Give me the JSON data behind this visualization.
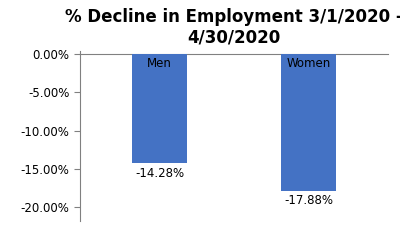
{
  "categories": [
    "Men",
    "Women"
  ],
  "values": [
    -14.28,
    -17.88
  ],
  "bar_color": "#4472C4",
  "title": "% Decline in Employment 3/1/2020 -\n4/30/2020",
  "ylim": [
    -20,
    0
  ],
  "yticks": [
    0,
    -5,
    -10,
    -15,
    -20
  ],
  "ytick_labels": [
    "0.00%",
    "-5.00%",
    "-10.00%",
    "-15.00%",
    "-20.00%"
  ],
  "bar_labels": [
    "-14.28%",
    "-17.88%"
  ],
  "cat_labels": [
    "Men",
    "Women"
  ],
  "title_fontsize": 12,
  "label_fontsize": 8.5,
  "tick_fontsize": 8.5,
  "bar_width": 0.55,
  "x_positions": [
    1,
    2.5
  ],
  "xlim": [
    0.2,
    3.3
  ],
  "background_color": "#ffffff"
}
